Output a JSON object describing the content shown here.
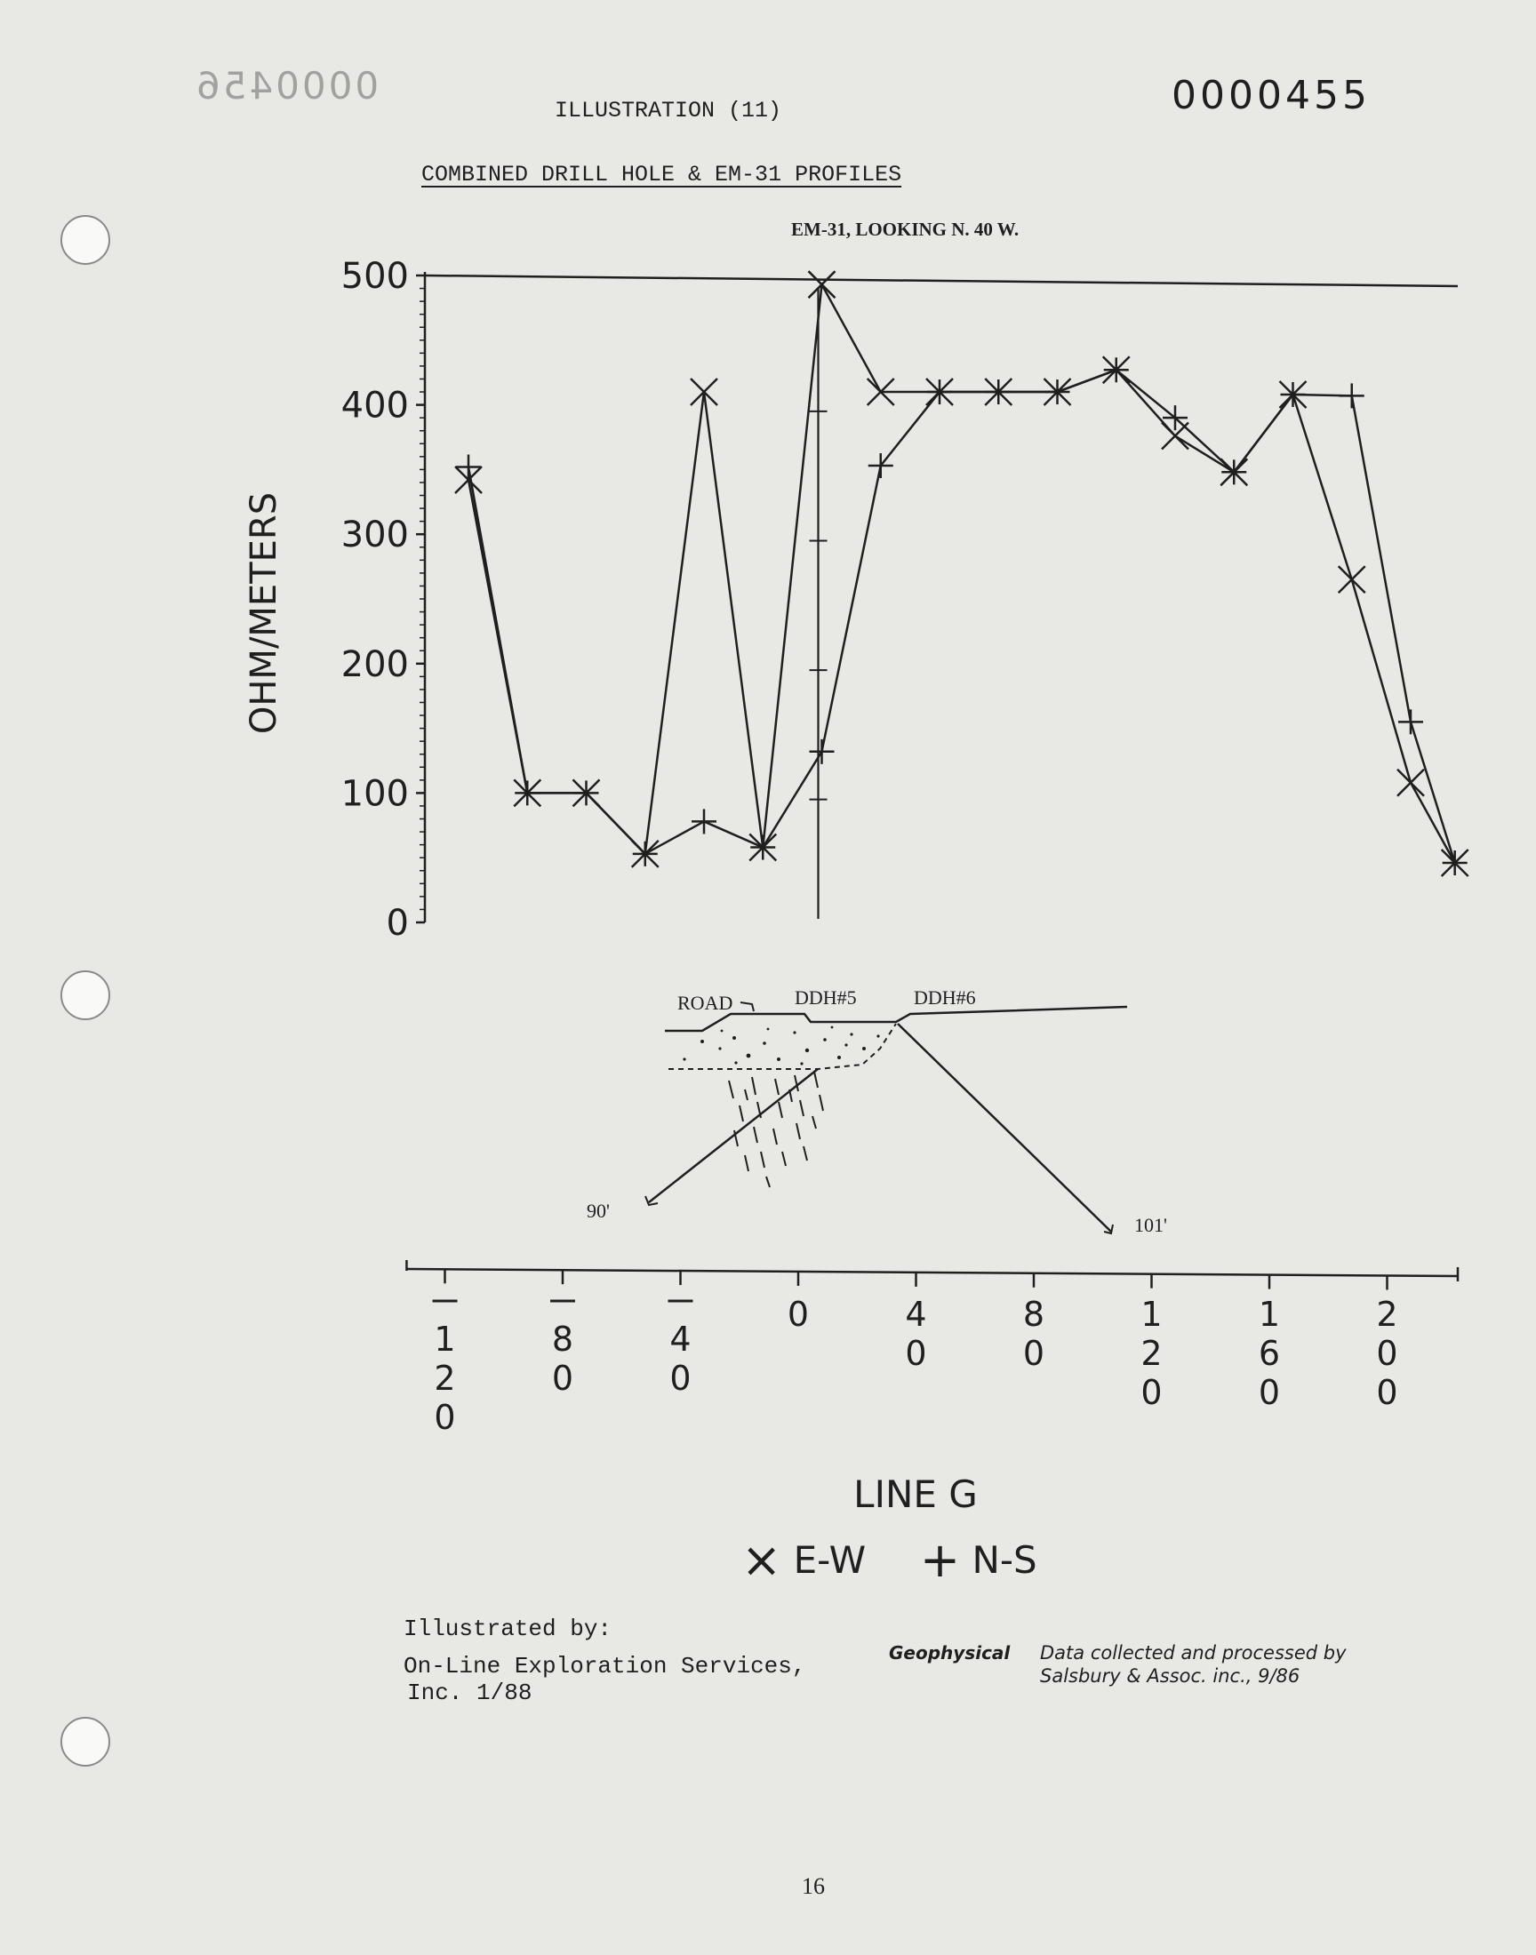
{
  "header": {
    "mirrored_stamp": "0000456",
    "illustration_label": "ILLUSTRATION (11)",
    "doc_number": "0000455",
    "section_title": "COMBINED DRILL HOLE & EM-31 PROFILES"
  },
  "cross_section": {
    "road_label": "ROAD",
    "ddh5_label": "DDH#5",
    "ddh6_label": "DDH#6",
    "depth_left": "90'",
    "depth_right": "101'"
  },
  "footer": {
    "illustrated_by_label": "Illustrated by:",
    "company_line1": "On-Line Exploration Services,",
    "company_line2": "Inc.  1/88",
    "geophysical_word": "Geophysical",
    "credit_line1": "Data collected and processed by",
    "credit_line2": "Salsbury & Assoc. inc., 9/86",
    "page_number": "16"
  },
  "chart_data": {
    "type": "line",
    "title": "EM-31, LOOKING N. 40 W.",
    "ylabel": "OHM/METERS",
    "xlabel": "LINE G",
    "ylim": [
      0,
      500
    ],
    "xlim": [
      -120,
      220
    ],
    "yticks": [
      0,
      100,
      200,
      300,
      400,
      500
    ],
    "xticks": [
      -120,
      -80,
      -40,
      0,
      40,
      80,
      120,
      160,
      200
    ],
    "xtick_labels": [
      "-120",
      "-80",
      "-40",
      "0",
      "40",
      "80",
      "120",
      "160",
      "200"
    ],
    "legend": [
      {
        "symbol": "×",
        "label": "E-W"
      },
      {
        "symbol": "+",
        "label": "N-S"
      }
    ],
    "legend_position": "bottom-center",
    "grid": false,
    "series": [
      {
        "name": "E-W",
        "marker": "x",
        "x": [
          -112,
          -92,
          -72,
          -52,
          -32,
          -12,
          8,
          28,
          48,
          68,
          88,
          108,
          128,
          148,
          168,
          188,
          208,
          223
        ],
        "y": [
          342,
          100,
          100,
          53,
          410,
          58,
          493,
          410,
          410,
          410,
          410,
          427,
          376,
          348,
          408,
          265,
          108,
          46
        ]
      },
      {
        "name": "N-S",
        "marker": "+",
        "x": [
          -112,
          -92,
          -72,
          -52,
          -32,
          -12,
          8,
          28,
          48,
          68,
          88,
          108,
          128,
          148,
          168,
          188,
          208,
          223
        ],
        "y": [
          352,
          100,
          100,
          53,
          78,
          58,
          132,
          353,
          410,
          410,
          410,
          427,
          390,
          348,
          408,
          407,
          155,
          46
        ]
      }
    ],
    "drill_hole_depth_ticks": [
      95,
      195,
      295,
      395
    ]
  },
  "colors": {
    "paper": "#e8e9e5",
    "ink": "#1f1f1f",
    "hole": "#f9f9f7"
  }
}
